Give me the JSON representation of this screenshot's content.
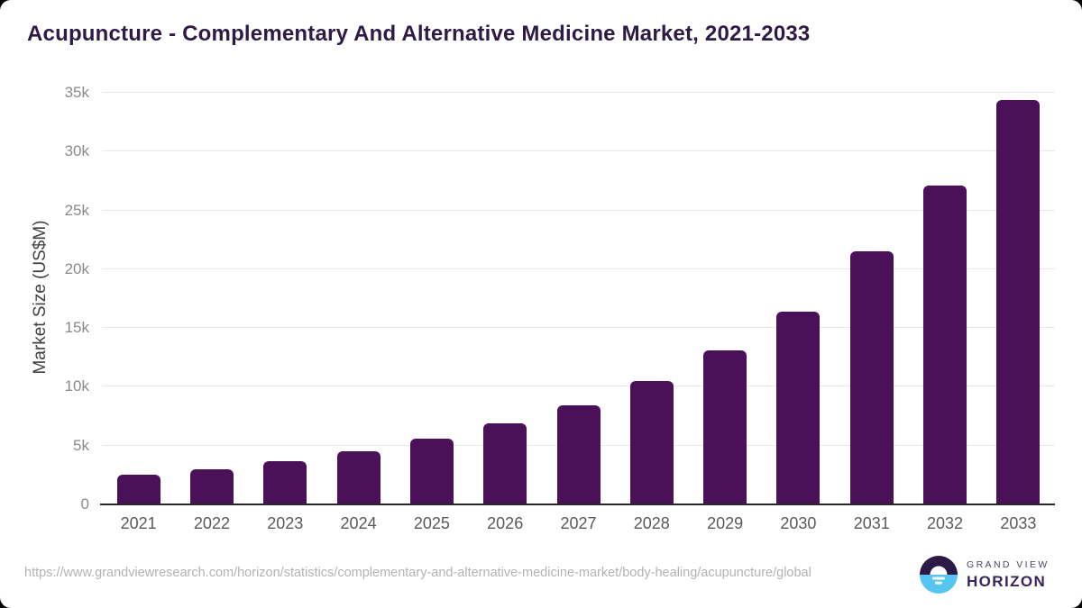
{
  "chart_data": {
    "type": "bar",
    "title": "Acupuncture - Complementary And Alternative Medicine Market, 2021-2033",
    "categories": [
      "2021",
      "2022",
      "2023",
      "2024",
      "2025",
      "2026",
      "2027",
      "2028",
      "2029",
      "2030",
      "2031",
      "2032",
      "2033"
    ],
    "values": [
      2500,
      3000,
      3700,
      4500,
      5600,
      6900,
      8400,
      10500,
      13100,
      16400,
      21500,
      27100,
      34400
    ],
    "xlabel": "",
    "ylabel": "Market Size (US$M)",
    "ylim": [
      0,
      35000
    ],
    "ytick_step": 5000,
    "ytick_labels": [
      "0",
      "5k",
      "10k",
      "15k",
      "20k",
      "25k",
      "30k",
      "35k"
    ],
    "grid": true,
    "legend": "none",
    "bar_color": "#4A1159"
  },
  "footer": {
    "source_url": "https://www.grandviewresearch.com/horizon/statistics/complementary-and-alternative-medicine-market/body-healing/acupuncture/global",
    "logo": {
      "top_text": "GRAND VIEW",
      "bottom_text": "HORIZON",
      "icon": "horizon-sun-over-water-icon",
      "icon_dark_color": "#2A1A45",
      "icon_blue_color": "#56C5F2"
    }
  },
  "colors": {
    "bar": "#4A1159",
    "title": "#2E1A47",
    "grid": "#E8E8E8",
    "axis": "#262626",
    "y_tick": "#8A8A8A",
    "x_tick": "#595959",
    "y_label": "#3F3F3F",
    "url": "#B3B3B3"
  }
}
